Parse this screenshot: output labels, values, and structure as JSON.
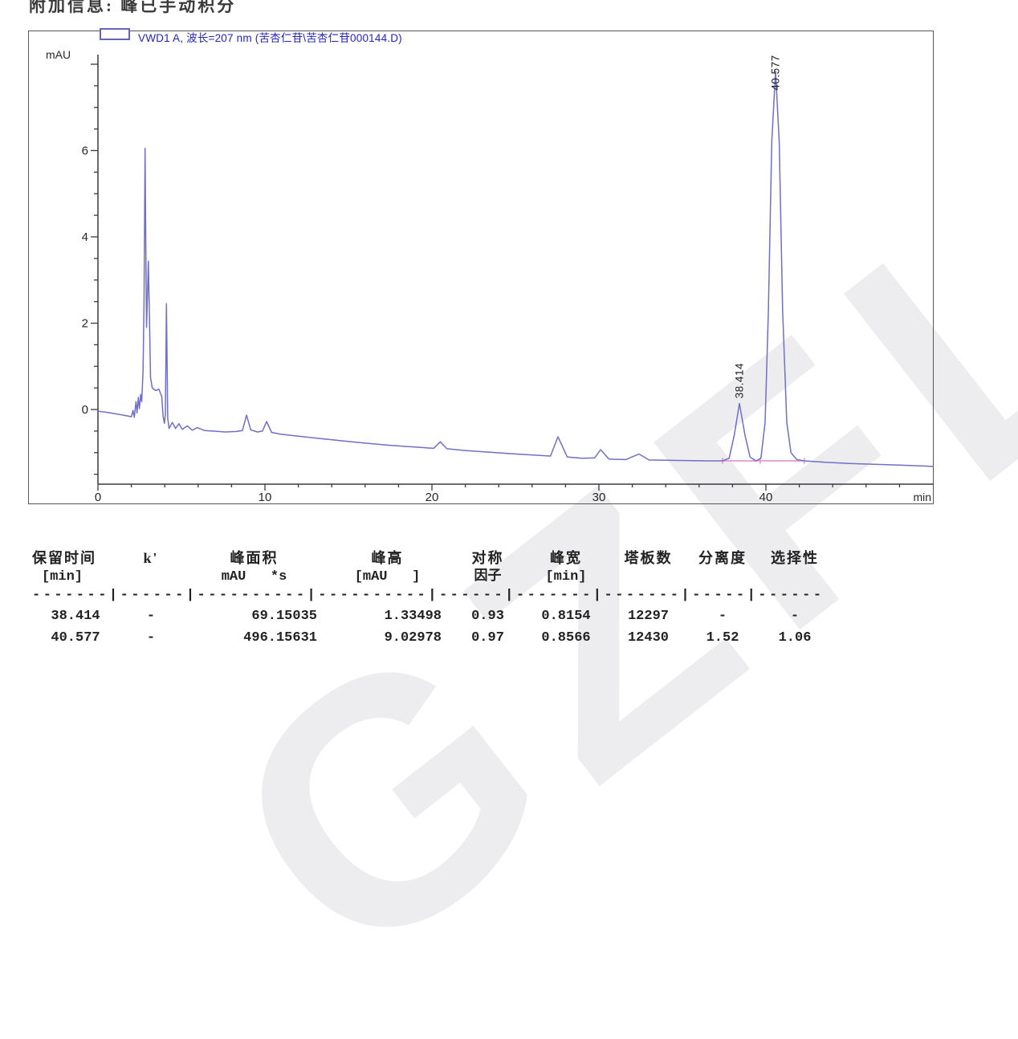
{
  "page": {
    "top_info": "附加信息: 峰已手动积分",
    "watermark": "GZFLM"
  },
  "chromatogram": {
    "legend": "VWD1 A, 波长=207 nm (苦杏仁苷\\苦杏仁苷000144.D)",
    "y_axis_unit": "mAU",
    "x_axis_unit": "min"
  },
  "chart_data": {
    "type": "line",
    "title": "VWD1 A, 波长=207 nm (苦杏仁苷\\苦杏仁苷000144.D)",
    "xlabel": "min",
    "ylabel": "mAU",
    "xlim": [
      0,
      50
    ],
    "ylim": [
      -1.73,
      8.2
    ],
    "xticks_labeled": [
      0,
      10,
      20,
      30,
      40
    ],
    "x_minor_step": 2,
    "yticks_labeled": [
      0,
      2,
      4,
      6
    ],
    "y_major_step": 2,
    "y_minor_step": 0.5,
    "grid": false,
    "trace_color": "#6f6fc6",
    "axis_color": "#3a3a40",
    "peaks": [
      {
        "retention_time_min": 38.414,
        "height_mau": 1.33498,
        "label": "38.414"
      },
      {
        "retention_time_min": 40.577,
        "height_mau": 9.02978,
        "label": "40.577"
      }
    ],
    "integration_baseline": {
      "t_start": 37.4,
      "t_end": 42.3,
      "value_mau": -1.19,
      "tick_ts": [
        37.4,
        39.66,
        42.3
      ],
      "color": "#e892cc"
    },
    "trace": [
      [
        0,
        -0.04
      ],
      [
        0.6,
        -0.07
      ],
      [
        1.2,
        -0.11
      ],
      [
        1.8,
        -0.15
      ],
      [
        2.0,
        -0.17
      ],
      [
        2.1,
        -0.02
      ],
      [
        2.18,
        -0.18
      ],
      [
        2.28,
        0.18
      ],
      [
        2.34,
        -0.08
      ],
      [
        2.42,
        0.28
      ],
      [
        2.48,
        0.02
      ],
      [
        2.56,
        0.35
      ],
      [
        2.62,
        0.18
      ],
      [
        2.7,
        0.9
      ],
      [
        2.76,
        2.5
      ],
      [
        2.82,
        6.05
      ],
      [
        2.87,
        3.6
      ],
      [
        2.91,
        1.9
      ],
      [
        2.97,
        2.7
      ],
      [
        3.02,
        3.44
      ],
      [
        3.08,
        2.2
      ],
      [
        3.15,
        0.75
      ],
      [
        3.25,
        0.5
      ],
      [
        3.45,
        0.44
      ],
      [
        3.65,
        0.47
      ],
      [
        3.82,
        0.3
      ],
      [
        3.9,
        -0.15
      ],
      [
        3.98,
        -0.32
      ],
      [
        4.04,
        -0.1
      ],
      [
        4.1,
        2.45
      ],
      [
        4.18,
        -0.2
      ],
      [
        4.26,
        -0.44
      ],
      [
        4.45,
        -0.3
      ],
      [
        4.65,
        -0.44
      ],
      [
        4.85,
        -0.33
      ],
      [
        5.05,
        -0.46
      ],
      [
        5.35,
        -0.38
      ],
      [
        5.65,
        -0.48
      ],
      [
        5.95,
        -0.42
      ],
      [
        6.4,
        -0.49
      ],
      [
        6.9,
        -0.5
      ],
      [
        7.6,
        -0.52
      ],
      [
        8.3,
        -0.51
      ],
      [
        8.65,
        -0.49
      ],
      [
        8.9,
        -0.13
      ],
      [
        9.15,
        -0.47
      ],
      [
        9.55,
        -0.52
      ],
      [
        9.85,
        -0.5
      ],
      [
        10.1,
        -0.28
      ],
      [
        10.4,
        -0.53
      ],
      [
        10.9,
        -0.57
      ],
      [
        11.8,
        -0.61
      ],
      [
        13,
        -0.66
      ],
      [
        14.5,
        -0.72
      ],
      [
        16,
        -0.78
      ],
      [
        17.5,
        -0.83
      ],
      [
        19,
        -0.87
      ],
      [
        20.1,
        -0.9
      ],
      [
        20.5,
        -0.75
      ],
      [
        20.9,
        -0.91
      ],
      [
        22,
        -0.95
      ],
      [
        23.5,
        -0.99
      ],
      [
        25,
        -1.03
      ],
      [
        26.3,
        -1.06
      ],
      [
        27.1,
        -1.08
      ],
      [
        27.55,
        -0.63
      ],
      [
        28.1,
        -1.1
      ],
      [
        29,
        -1.13
      ],
      [
        29.75,
        -1.12
      ],
      [
        30.1,
        -0.93
      ],
      [
        30.6,
        -1.15
      ],
      [
        31.6,
        -1.16
      ],
      [
        32.4,
        -1.03
      ],
      [
        33,
        -1.17
      ],
      [
        34.5,
        -1.18
      ],
      [
        36.5,
        -1.19
      ],
      [
        37.4,
        -1.19
      ],
      [
        37.8,
        -1.13
      ],
      [
        38.1,
        -0.6
      ],
      [
        38.414,
        0.14
      ],
      [
        38.75,
        -0.6
      ],
      [
        39.05,
        -1.1
      ],
      [
        39.4,
        -1.19
      ],
      [
        39.7,
        -1.13
      ],
      [
        39.95,
        -0.3
      ],
      [
        40.15,
        2.3
      ],
      [
        40.35,
        6.2
      ],
      [
        40.577,
        7.84
      ],
      [
        40.8,
        6.2
      ],
      [
        41.0,
        2.3
      ],
      [
        41.25,
        -0.3
      ],
      [
        41.5,
        -1.0
      ],
      [
        41.85,
        -1.16
      ],
      [
        42.3,
        -1.19
      ],
      [
        43.5,
        -1.22
      ],
      [
        45,
        -1.25
      ],
      [
        46.5,
        -1.27
      ],
      [
        48,
        -1.29
      ],
      [
        49.5,
        -1.31
      ],
      [
        50,
        -1.32
      ]
    ]
  },
  "peak_table": {
    "headers_line1": [
      "保留时间",
      "k'",
      "峰面积",
      "峰高",
      "对称",
      "峰宽",
      "塔板数",
      "分离度",
      "选择性"
    ],
    "headers_line2": [
      "[min]",
      "",
      "mAU   *s",
      "[mAU   ]",
      "因子",
      "[min]",
      "",
      "",
      ""
    ],
    "separator": "-------|------|----------|----------|------|-------|-------|-----|------",
    "rows": [
      [
        "38.414",
        "-",
        "69.15035",
        "1.33498",
        "0.93",
        "0.8154",
        "12297",
        "-",
        "-"
      ],
      [
        "40.577",
        "-",
        "496.15631",
        "9.02978",
        "0.97",
        "0.8566",
        "12430",
        "1.52",
        "1.06"
      ]
    ]
  }
}
